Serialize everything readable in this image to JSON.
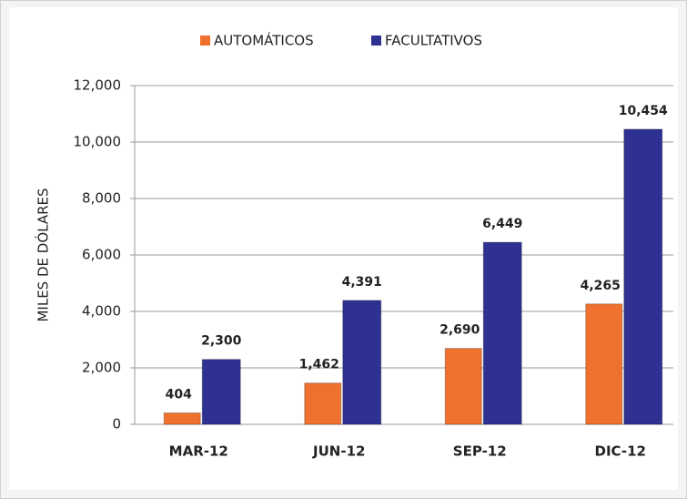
{
  "chart_data": {
    "type": "bar",
    "y_label": "MILES DE DÓLARES",
    "categories": [
      "MAR-12",
      "JUN-12",
      "SEP-12",
      "DIC-12"
    ],
    "series": [
      {
        "name": "AUTOMÁTICOS",
        "color": "#f0702e",
        "values": [
          404,
          1462,
          2690,
          4265
        ],
        "value_labels": [
          "404",
          "1,462",
          "2,690",
          "4,265"
        ]
      },
      {
        "name": "FACULTATIVOS",
        "color": "#2e3192",
        "values": [
          2300,
          4391,
          6449,
          10454
        ],
        "value_labels": [
          "2,300",
          "4,391",
          "6,449",
          "10,454"
        ]
      }
    ],
    "ylim": [
      0,
      12000
    ],
    "yticks": [
      0,
      {
        "value": 2000,
        "label": "2,000"
      },
      {
        "value": 4000,
        "label": "4,000"
      },
      {
        "value": 6000,
        "label": "6,000"
      },
      {
        "value": 8000,
        "label": "8,000"
      },
      {
        "value": 10000,
        "label": "10,000"
      },
      {
        "value": 12000,
        "label": "12,000"
      }
    ],
    "grid": true,
    "legend": "top"
  }
}
